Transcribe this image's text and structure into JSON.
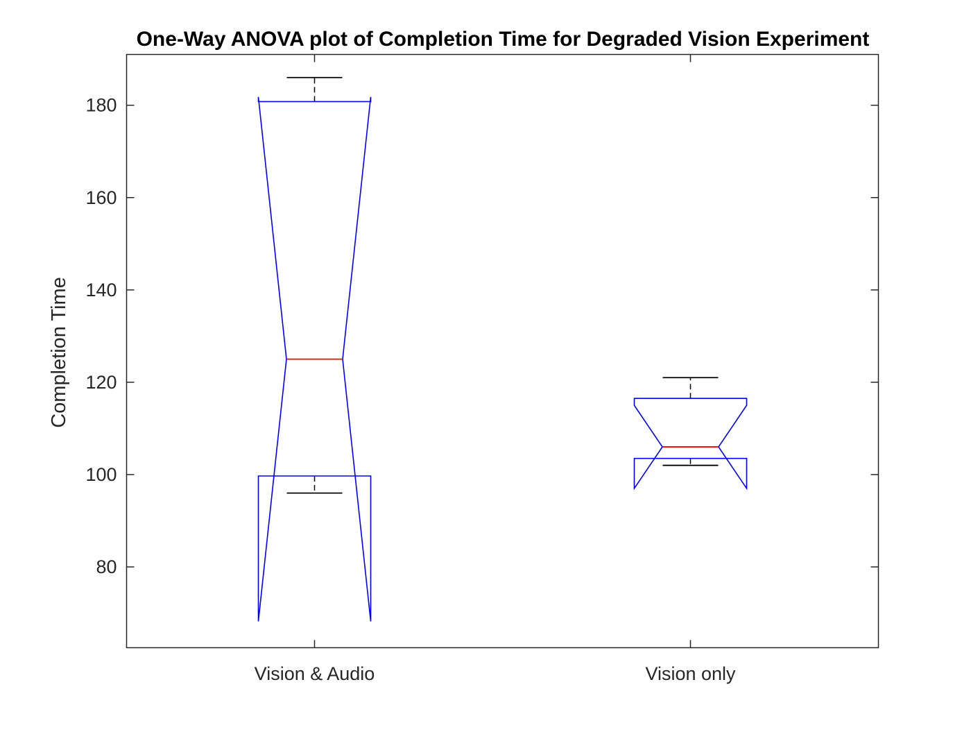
{
  "chart_data": {
    "type": "box",
    "title": "One-Way ANOVA plot of Completion Time for Degraded Vision Experiment",
    "xlabel": "",
    "ylabel": "Completion Time",
    "ylim": [
      62.5,
      191
    ],
    "yticks": [
      80,
      100,
      120,
      140,
      160,
      180
    ],
    "categories": [
      "Vision & Audio",
      "Vision only"
    ],
    "notched": true,
    "grid": false,
    "boxes": [
      {
        "category": "Vision & Audio",
        "whisker_low": 96,
        "q1": 99.7,
        "median": 125,
        "q3": 180.8,
        "whisker_high": 186,
        "notch_low": 68.2,
        "notch_high": 181.8
      },
      {
        "category": "Vision only",
        "whisker_low": 102,
        "q1": 103.5,
        "median": 106,
        "q3": 116.5,
        "whisker_high": 121,
        "notch_low": 97,
        "notch_high": 115
      }
    ],
    "colors": {
      "box": "#0000ff",
      "median": "#ff0000",
      "whisker": "#000000",
      "axes": "#262626"
    }
  }
}
